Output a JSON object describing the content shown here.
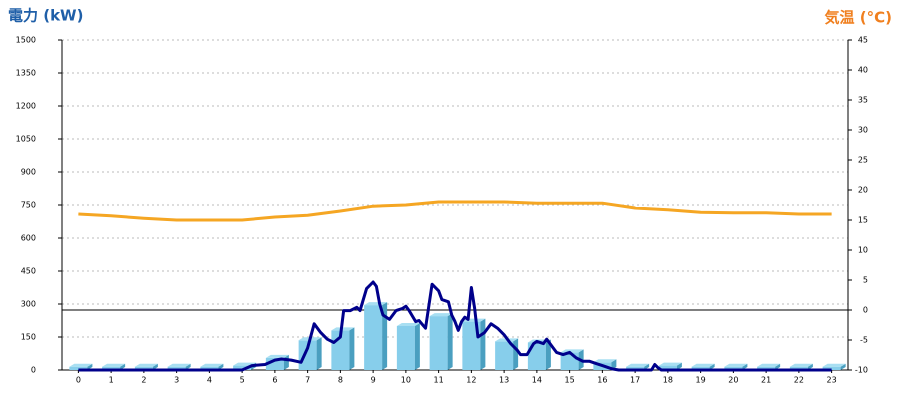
{
  "chart_data": {
    "type": "combo",
    "y_label": "電力 (kW)",
    "y2_label": "気温 (°C)",
    "x": [
      0,
      1,
      2,
      3,
      4,
      5,
      6,
      7,
      8,
      9,
      10,
      11,
      12,
      13,
      14,
      15,
      16,
      17,
      18,
      19,
      20,
      21,
      22,
      23
    ],
    "xlim": [
      -0.5,
      23.5
    ],
    "xticks": [
      0,
      1,
      2,
      3,
      4,
      5,
      6,
      7,
      8,
      9,
      10,
      11,
      12,
      13,
      14,
      15,
      16,
      17,
      18,
      19,
      20,
      21,
      22,
      23
    ],
    "ylim": [
      0,
      1500
    ],
    "yticks": [
      0,
      150,
      300,
      450,
      600,
      750,
      900,
      1050,
      1200,
      1350,
      1500
    ],
    "y2lim": [
      -10,
      45
    ],
    "y2ticks": [
      -10,
      -5,
      0,
      5,
      10,
      15,
      20,
      25,
      30,
      35,
      40,
      45
    ],
    "grid": true,
    "y2_zero_line": true,
    "series": [
      {
        "type": "bar",
        "color": "#87ceeb",
        "values": [
          15,
          15,
          15,
          15,
          15,
          20,
          55,
          135,
          180,
          295,
          200,
          245,
          220,
          130,
          125,
          80,
          35,
          15,
          20,
          15,
          15,
          15,
          15,
          15
        ]
      },
      {
        "type": "line",
        "color": "#00008b",
        "x": [
          0,
          5,
          5.3,
          5.7,
          6,
          6.2,
          6.5,
          6.8,
          7,
          7.2,
          7.4,
          7.6,
          7.8,
          8,
          8.1,
          8.3,
          8.5,
          8.6,
          8.8,
          9,
          9.1,
          9.2,
          9.3,
          9.5,
          9.7,
          9.9,
          10,
          10.1,
          10.3,
          10.4,
          10.6,
          10.8,
          11,
          11.1,
          11.3,
          11.4,
          11.5,
          11.6,
          11.7,
          11.8,
          11.9,
          12,
          12.1,
          12.2,
          12.4,
          12.6,
          12.8,
          13,
          13.2,
          13.4,
          13.5,
          13.7,
          13.9,
          14,
          14.2,
          14.3,
          14.5,
          14.6,
          14.8,
          15,
          15.2,
          15.4,
          15.6,
          15.8,
          16,
          16.3,
          16.5,
          17,
          17.5,
          17.6,
          17.7,
          17.8,
          23
        ],
        "values": [
          0,
          0,
          20,
          25,
          45,
          50,
          45,
          35,
          100,
          210,
          170,
          140,
          125,
          150,
          270,
          270,
          285,
          270,
          370,
          400,
          380,
          300,
          250,
          230,
          270,
          280,
          290,
          270,
          220,
          225,
          190,
          390,
          360,
          320,
          310,
          250,
          220,
          180,
          220,
          240,
          230,
          375,
          280,
          150,
          170,
          210,
          190,
          160,
          120,
          90,
          70,
          70,
          120,
          130,
          120,
          140,
          100,
          80,
          70,
          80,
          55,
          40,
          40,
          30,
          20,
          5,
          0,
          0,
          0,
          25,
          10,
          0,
          0
        ]
      },
      {
        "type": "line",
        "axis": "y2",
        "color": "#f5a623",
        "values": [
          16,
          15.7,
          15.3,
          15,
          15,
          15,
          15.5,
          15.8,
          16.5,
          17.3,
          17.5,
          18,
          18,
          18,
          17.8,
          17.8,
          17.8,
          17,
          16.7,
          16.3,
          16.2,
          16.2,
          16,
          16
        ]
      }
    ]
  }
}
